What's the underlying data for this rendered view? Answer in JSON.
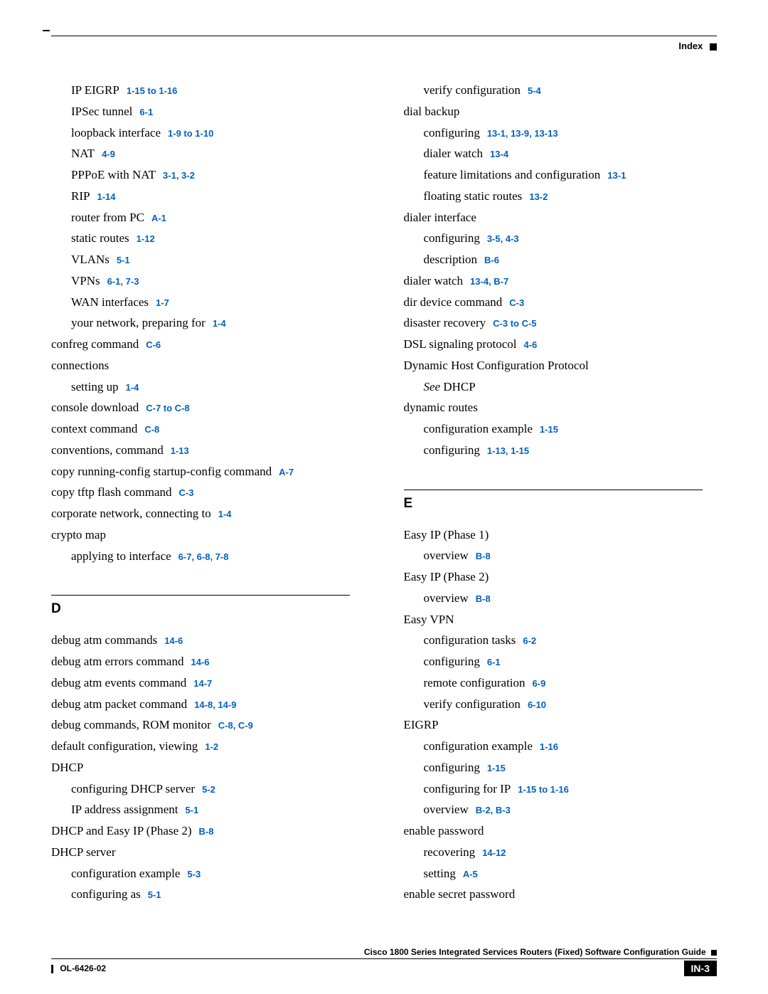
{
  "header": {
    "label": "Index"
  },
  "footer": {
    "title": "Cisco 1800 Series Integrated Services Routers (Fixed) Software Configuration Guide",
    "doc_id": "OL-6426-02",
    "page_num": "IN-3"
  },
  "sections": {
    "D": "D",
    "E": "E"
  },
  "col1": [
    {
      "indent": 1,
      "text": "IP EIGRP",
      "ref": "1-15 to 1-16"
    },
    {
      "indent": 1,
      "text": "IPSec tunnel",
      "ref": "6-1"
    },
    {
      "indent": 1,
      "text": "loopback interface",
      "ref": "1-9 to 1-10"
    },
    {
      "indent": 1,
      "text": "NAT",
      "ref": "4-9"
    },
    {
      "indent": 1,
      "text": "PPPoE with NAT",
      "ref": "3-1, 3-2"
    },
    {
      "indent": 1,
      "text": "RIP",
      "ref": "1-14"
    },
    {
      "indent": 1,
      "text": "router from PC",
      "ref": "A-1"
    },
    {
      "indent": 1,
      "text": "static routes",
      "ref": "1-12"
    },
    {
      "indent": 1,
      "text": "VLANs",
      "ref": "5-1"
    },
    {
      "indent": 1,
      "text": "VPNs",
      "ref": "6-1, 7-3"
    },
    {
      "indent": 1,
      "text": "WAN interfaces",
      "ref": "1-7"
    },
    {
      "indent": 1,
      "text": "your network, preparing for",
      "ref": "1-4"
    },
    {
      "indent": 0,
      "text": "confreg command",
      "ref": "C-6"
    },
    {
      "indent": 0,
      "text": "connections",
      "ref": ""
    },
    {
      "indent": 1,
      "text": "setting up",
      "ref": "1-4"
    },
    {
      "indent": 0,
      "text": "console download",
      "ref": "C-7 to C-8"
    },
    {
      "indent": 0,
      "text": "context command",
      "ref": "C-8"
    },
    {
      "indent": 0,
      "text": "conventions, command",
      "ref": "1-13"
    },
    {
      "indent": 0,
      "text": "copy running-config startup-config command",
      "ref": "A-7"
    },
    {
      "indent": 0,
      "text": "copy tftp flash command",
      "ref": "C-3"
    },
    {
      "indent": 0,
      "text": "corporate network, connecting to",
      "ref": "1-4"
    },
    {
      "indent": 0,
      "text": "crypto map",
      "ref": ""
    },
    {
      "indent": 1,
      "text": "applying to interface",
      "ref": "6-7, 6-8, 7-8"
    }
  ],
  "col1_D": [
    {
      "indent": 0,
      "text": "debug atm commands",
      "ref": "14-6"
    },
    {
      "indent": 0,
      "text": "debug atm errors command",
      "ref": "14-6"
    },
    {
      "indent": 0,
      "text": "debug atm events command",
      "ref": "14-7"
    },
    {
      "indent": 0,
      "text": "debug atm packet command",
      "ref": "14-8, 14-9"
    },
    {
      "indent": 0,
      "text": "debug commands, ROM monitor",
      "ref": "C-8, C-9"
    },
    {
      "indent": 0,
      "text": "default configuration, viewing",
      "ref": "1-2"
    },
    {
      "indent": 0,
      "text": "DHCP",
      "ref": ""
    },
    {
      "indent": 1,
      "text": "configuring DHCP server",
      "ref": "5-2"
    },
    {
      "indent": 1,
      "text": "IP address assignment",
      "ref": "5-1"
    },
    {
      "indent": 0,
      "text": "DHCP and Easy IP (Phase 2)",
      "ref": "B-8"
    },
    {
      "indent": 0,
      "text": "DHCP server",
      "ref": ""
    },
    {
      "indent": 1,
      "text": "configuration example",
      "ref": "5-3"
    },
    {
      "indent": 1,
      "text": "configuring as",
      "ref": "5-1"
    }
  ],
  "col2_top": [
    {
      "indent": 1,
      "text": "verify configuration",
      "ref": "5-4"
    },
    {
      "indent": 0,
      "text": "dial backup",
      "ref": ""
    },
    {
      "indent": 1,
      "text": "configuring",
      "ref": "13-1, 13-9, 13-13"
    },
    {
      "indent": 1,
      "text": "dialer watch",
      "ref": "13-4"
    },
    {
      "indent": 1,
      "text": "feature limitations and configuration",
      "ref": "13-1"
    },
    {
      "indent": 1,
      "text": "floating static routes",
      "ref": "13-2"
    },
    {
      "indent": 0,
      "text": "dialer interface",
      "ref": ""
    },
    {
      "indent": 1,
      "text": "configuring",
      "ref": "3-5, 4-3"
    },
    {
      "indent": 1,
      "text": "description",
      "ref": "B-6"
    },
    {
      "indent": 0,
      "text": "dialer watch",
      "ref": "13-4, B-7"
    },
    {
      "indent": 0,
      "text": "dir device command",
      "ref": "C-3"
    },
    {
      "indent": 0,
      "text": "disaster recovery",
      "ref": "C-3 to C-5"
    },
    {
      "indent": 0,
      "text": "DSL signaling protocol",
      "ref": "4-6"
    },
    {
      "indent": 0,
      "text": "Dynamic Host Configuration Protocol",
      "ref": ""
    }
  ],
  "see_dhcp": {
    "see": "See",
    "target": " DHCP"
  },
  "col2_mid": [
    {
      "indent": 0,
      "text": "dynamic routes",
      "ref": ""
    },
    {
      "indent": 1,
      "text": "configuration example",
      "ref": "1-15"
    },
    {
      "indent": 1,
      "text": "configuring",
      "ref": "1-13, 1-15"
    }
  ],
  "col2_E": [
    {
      "indent": 0,
      "text": "Easy IP (Phase 1)",
      "ref": ""
    },
    {
      "indent": 1,
      "text": "overview",
      "ref": "B-8"
    },
    {
      "indent": 0,
      "text": "Easy IP (Phase 2)",
      "ref": ""
    },
    {
      "indent": 1,
      "text": "overview",
      "ref": "B-8"
    },
    {
      "indent": 0,
      "text": "Easy VPN",
      "ref": ""
    },
    {
      "indent": 1,
      "text": "configuration tasks",
      "ref": "6-2"
    },
    {
      "indent": 1,
      "text": "configuring",
      "ref": "6-1"
    },
    {
      "indent": 1,
      "text": "remote configuration",
      "ref": "6-9"
    },
    {
      "indent": 1,
      "text": "verify configuration",
      "ref": "6-10"
    },
    {
      "indent": 0,
      "text": "EIGRP",
      "ref": ""
    },
    {
      "indent": 1,
      "text": "configuration example",
      "ref": "1-16"
    },
    {
      "indent": 1,
      "text": "configuring",
      "ref": "1-15"
    },
    {
      "indent": 1,
      "text": "configuring for IP",
      "ref": "1-15 to 1-16"
    },
    {
      "indent": 1,
      "text": "overview",
      "ref": "B-2, B-3"
    },
    {
      "indent": 0,
      "text": "enable password",
      "ref": ""
    },
    {
      "indent": 1,
      "text": "recovering",
      "ref": "14-12"
    },
    {
      "indent": 1,
      "text": "setting",
      "ref": "A-5"
    },
    {
      "indent": 0,
      "text": "enable secret password",
      "ref": ""
    }
  ]
}
